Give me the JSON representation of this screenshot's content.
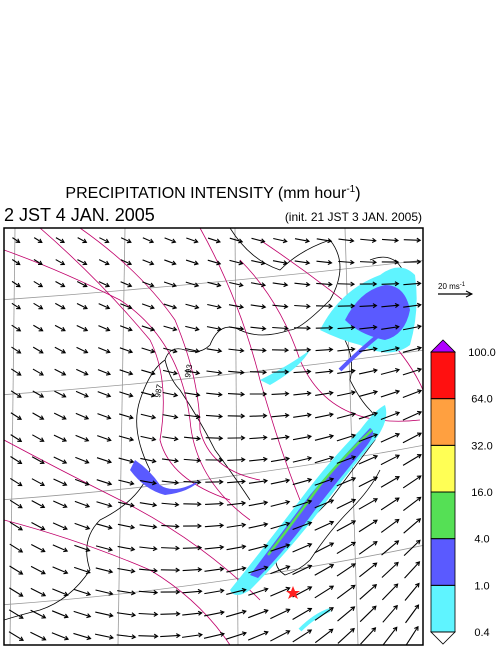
{
  "title": {
    "text": "PRECIPITATION INTENSITY (mm hour",
    "superscript": "-1",
    "suffix": ")"
  },
  "valid_time": "2 JST 4 JAN. 2005",
  "init_time": "(init. 21 JST 3 JAN. 2005)",
  "reference_vector": {
    "label": "20 ms",
    "superscript": "-1"
  },
  "contour_labels": [
    "987",
    "993"
  ],
  "colorbar": {
    "levels": [
      0.4,
      {
        "value": 1,
        "label": "1.0"
      },
      {
        "value": 4,
        "label": "4.0"
      },
      {
        "value": 16,
        "label": "16.0"
      },
      {
        "value": 32,
        "label": "32.0"
      },
      {
        "value": 64,
        "label": "64.0"
      },
      {
        "value": 100,
        "label": "100.0"
      }
    ],
    "colors": [
      "#5ff4ff",
      "#5a5aff",
      "#55e055",
      "#ffff55",
      "#ffa040",
      "#ff1010"
    ],
    "under_color": "#ffffff",
    "over_color": "#b000ff"
  }
}
